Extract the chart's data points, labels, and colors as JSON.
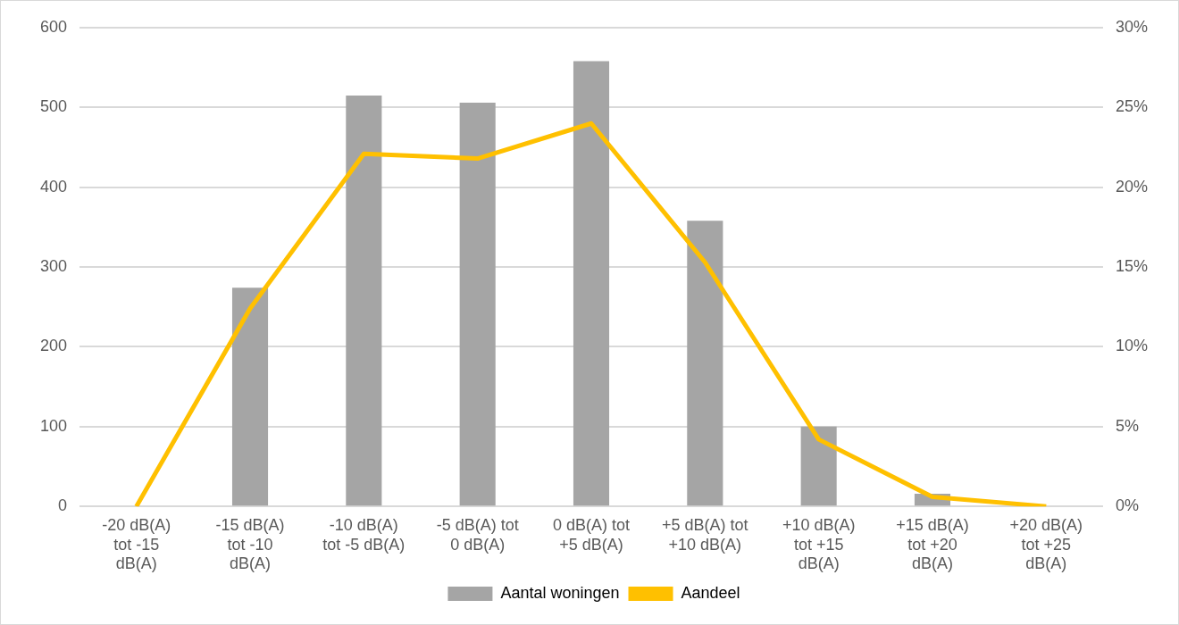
{
  "chart_data": {
    "type": "bar",
    "categories": [
      [
        "-20 dB(A)",
        "tot -15",
        "dB(A)"
      ],
      [
        "-15 dB(A)",
        "tot -10",
        "dB(A)"
      ],
      [
        "-10 dB(A)",
        "tot -5 dB(A)"
      ],
      [
        "-5 dB(A) tot",
        "0 dB(A)"
      ],
      [
        "0 dB(A) tot",
        "+5 dB(A)"
      ],
      [
        "+5 dB(A) tot",
        "+10 dB(A)"
      ],
      [
        "+10 dB(A)",
        "tot +15",
        "dB(A)"
      ],
      [
        "+15 dB(A)",
        "tot +20",
        "dB(A)"
      ],
      [
        "+20 dB(A)",
        "tot +25",
        "dB(A)"
      ]
    ],
    "series": [
      {
        "name": "Aantal woningen",
        "color": "#a5a5a5",
        "values": [
          0,
          274,
          515,
          506,
          558,
          358,
          100,
          16,
          0
        ]
      },
      {
        "name": "Aandeel",
        "type": "line",
        "axis": "y2",
        "color": "#ffc000",
        "marker": "none",
        "values": [
          0,
          12.4,
          22.1,
          21.8,
          24.0,
          15.3,
          4.2,
          0.6,
          0
        ]
      }
    ],
    "ylim": [
      0,
      600
    ],
    "yticks": [
      0,
      100,
      200,
      300,
      400,
      500,
      600
    ],
    "y2lim": [
      0,
      30
    ],
    "y2ticks": [
      {
        "value": 0,
        "label": "0%"
      },
      {
        "value": 5,
        "label": "5%"
      },
      {
        "value": 10,
        "label": "10%"
      },
      {
        "value": 15,
        "label": "15%"
      },
      {
        "value": 20,
        "label": "20%"
      },
      {
        "value": 25,
        "label": "25%"
      },
      {
        "value": 30,
        "label": "30%"
      }
    ],
    "grid": "y",
    "legend": "bottom"
  }
}
